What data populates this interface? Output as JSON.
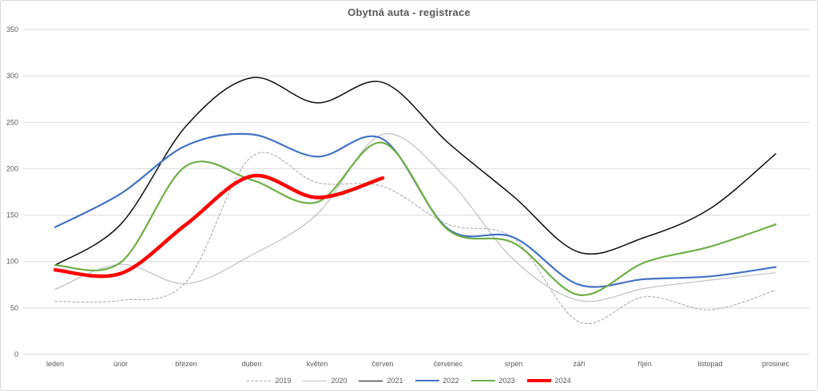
{
  "title": "Obytná auta - registrace",
  "chart_data": {
    "type": "line",
    "title": "Obytná auta - registrace",
    "smooth": true,
    "grid": true,
    "legend_position": "bottom",
    "xlabel": "",
    "ylabel": "",
    "ylim": [
      0,
      350
    ],
    "y_ticks": [
      0,
      50,
      100,
      150,
      200,
      250,
      300,
      350
    ],
    "categories": [
      "leden",
      "únor",
      "březen",
      "duben",
      "květen",
      "červen",
      "červenec",
      "srpen",
      "září",
      "říjen",
      "listopad",
      "prosinec"
    ],
    "series": [
      {
        "name": "2019",
        "color": "#a6a6a6",
        "dash": "3,2.5",
        "width": 1,
        "values": [
          57,
          58,
          78,
          213,
          185,
          181,
          140,
          125,
          35,
          62,
          48,
          69
        ]
      },
      {
        "name": "2020",
        "color": "#bfbfbf",
        "dash": null,
        "width": 1.2,
        "values": [
          70,
          97,
          76,
          107,
          151,
          237,
          188,
          102,
          58,
          71,
          80,
          88
        ]
      },
      {
        "name": "2021",
        "color": "#0d0d0d",
        "dash": null,
        "width": 1.5,
        "values": [
          96,
          140,
          246,
          298,
          271,
          293,
          228,
          170,
          110,
          126,
          157,
          216
        ]
      },
      {
        "name": "2022",
        "color": "#4472c4",
        "dash": null,
        "width": 2.2,
        "values": [
          137,
          173,
          225,
          237,
          213,
          232,
          135,
          126,
          75,
          81,
          84,
          94
        ]
      },
      {
        "name": "2023",
        "color": "#70ad47",
        "dash": null,
        "width": 2.2,
        "values": [
          96,
          99,
          203,
          188,
          164,
          228,
          134,
          120,
          64,
          99,
          116,
          140
        ]
      },
      {
        "name": "2024",
        "color": "#ff0000",
        "dash": null,
        "width": 4.5,
        "values": [
          91,
          87,
          140,
          192,
          169,
          190,
          null,
          null,
          null,
          null,
          null,
          null
        ]
      }
    ],
    "text_color": "#595959",
    "grid_color": "#d9d9d9"
  }
}
